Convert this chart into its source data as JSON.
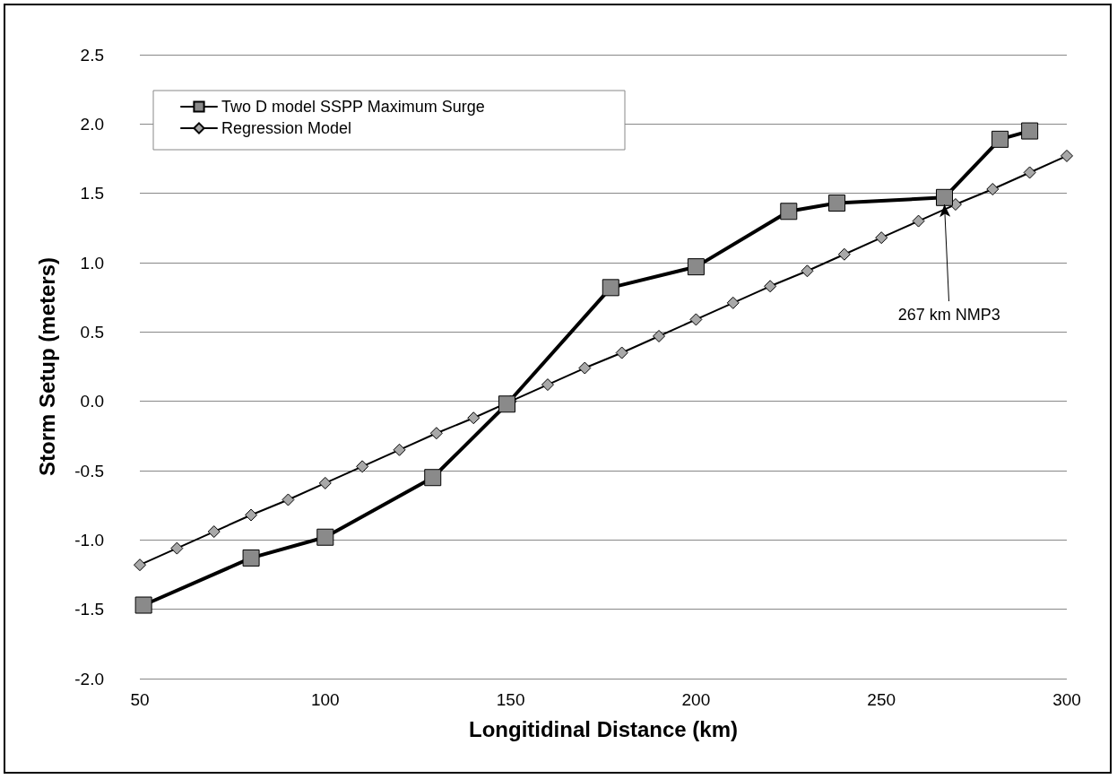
{
  "chart_data": {
    "type": "line",
    "xlabel": "Longitidinal Distance (km)",
    "ylabel": "Storm Setup (meters)",
    "xlim": [
      50,
      300
    ],
    "xticks": [
      50,
      100,
      150,
      200,
      250,
      300
    ],
    "ylim": [
      -2.0,
      2.5
    ],
    "yticks": [
      {
        "value": -2,
        "label": "-2.0"
      },
      {
        "value": -1.5,
        "label": "-1.5"
      },
      {
        "value": -1,
        "label": "-1.0"
      },
      {
        "value": -0.5,
        "label": "-0.5"
      },
      {
        "value": 0,
        "label": "0.0"
      },
      {
        "value": 0.5,
        "label": "0.5"
      },
      {
        "value": 1,
        "label": "1.0"
      },
      {
        "value": 1.5,
        "label": "1.5"
      },
      {
        "value": 2,
        "label": "2.0"
      },
      {
        "value": 2.5,
        "label": "2.5"
      }
    ],
    "grid": "y",
    "legend": "top left",
    "line_style": "solid",
    "series": [
      {
        "name": "Two D model SSPP Maximum Surge",
        "color": "#000000",
        "marker": "square",
        "x": [
          51,
          80,
          100,
          129,
          149,
          177,
          200,
          225,
          238,
          267,
          282,
          290
        ],
        "values": [
          -1.47,
          -1.13,
          -0.98,
          -0.55,
          -0.02,
          0.82,
          0.97,
          1.37,
          1.43,
          1.47,
          1.89,
          1.95
        ]
      },
      {
        "name": "Regression Model",
        "color": "#000000",
        "marker": "diamond",
        "x": [
          50,
          60,
          70,
          80,
          90,
          100,
          110,
          120,
          130,
          140,
          150,
          160,
          170,
          180,
          190,
          200,
          210,
          220,
          230,
          240,
          250,
          260,
          270,
          280,
          290,
          300
        ],
        "values": [
          -1.18,
          -1.06,
          -0.94,
          -0.82,
          -0.71,
          -0.59,
          -0.47,
          -0.35,
          -0.23,
          -0.12,
          0.0,
          0.12,
          0.24,
          0.35,
          0.47,
          0.59,
          0.71,
          0.83,
          0.94,
          1.06,
          1.18,
          1.3,
          1.42,
          1.53,
          1.65,
          1.77
        ]
      }
    ],
    "annotations": [
      {
        "text": "267 km NMP3",
        "x": 267,
        "y": 1.42
      }
    ]
  }
}
